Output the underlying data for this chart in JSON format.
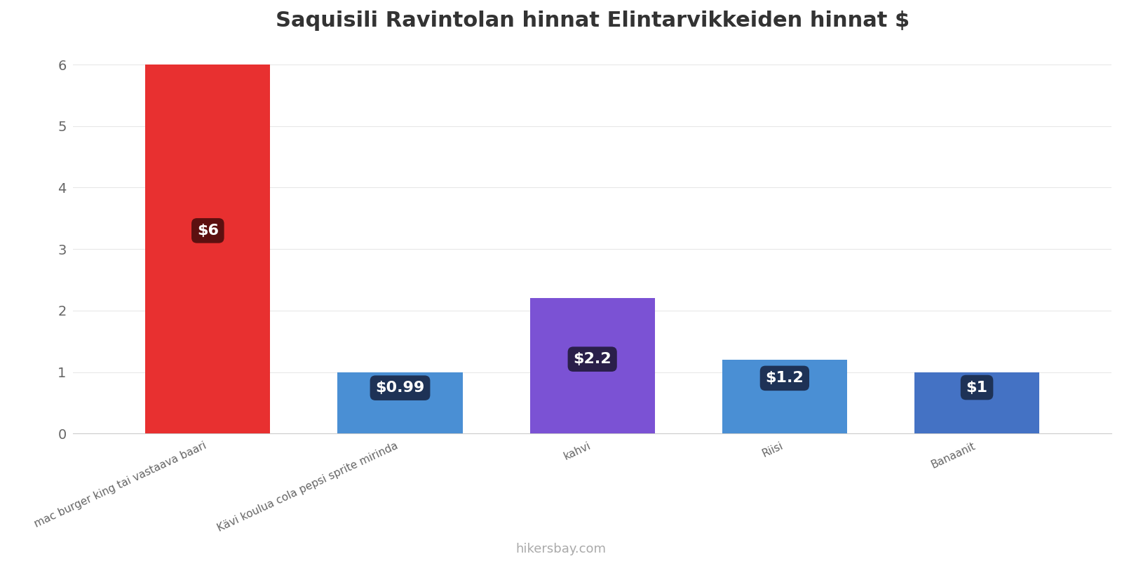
{
  "title": "Saquisili Ravintolan hinnat Elintarvikkeiden hinnat $",
  "categories": [
    "mac burger king tai vastaava baari",
    "Kävi koulua cola pepsi sprite mirinda",
    "kahvi",
    "Riisi",
    "Banaanit"
  ],
  "values": [
    6.0,
    0.99,
    2.2,
    1.2,
    1.0
  ],
  "bar_colors": [
    "#e83030",
    "#4a8fd4",
    "#7b52d4",
    "#4a8fd4",
    "#4472c4"
  ],
  "label_texts": [
    "$6",
    "$0.99",
    "$2.2",
    "$1.2",
    "$1"
  ],
  "label_bg_colors": [
    "#5c1010",
    "#1e3256",
    "#2a1f4a",
    "#1e3256",
    "#1e3256"
  ],
  "ylim": [
    0,
    6.3
  ],
  "yticks": [
    0,
    1,
    2,
    3,
    4,
    5,
    6
  ],
  "background_color": "#ffffff",
  "grid_color": "#e8e8e8",
  "watermark": "hikersbay.com",
  "title_fontsize": 22,
  "label_fontsize": 16,
  "tick_fontsize": 14,
  "xtick_fontsize": 11
}
